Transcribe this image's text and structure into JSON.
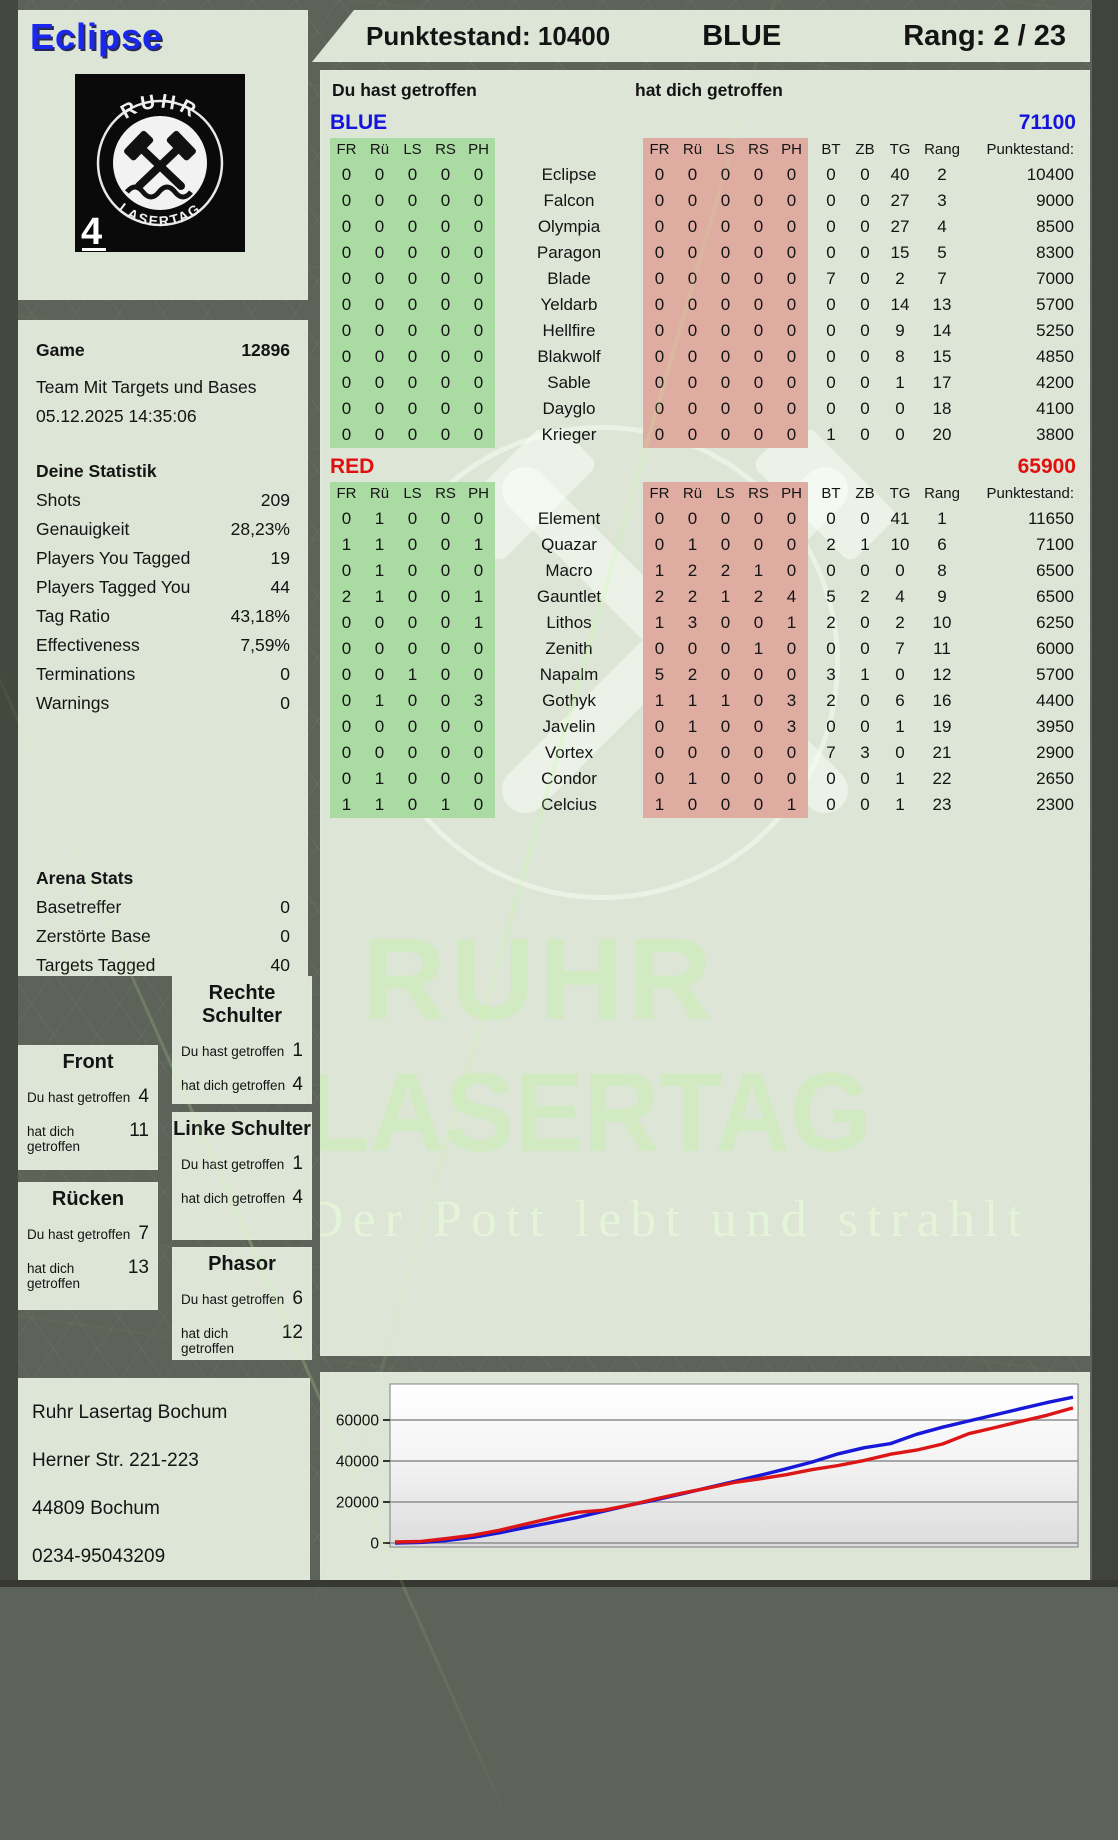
{
  "player": {
    "name": "Eclipse",
    "badge_number": "4"
  },
  "logo": {
    "arc_top": "RUHR",
    "arc_bottom": "LASERTAG",
    "icon": "crossed-hammers"
  },
  "header": {
    "punktestand": "Punktestand: 10400",
    "team": "BLUE",
    "rang": "Rang: 2 / 23"
  },
  "game": {
    "label": "Game",
    "id": "12896",
    "mode": "Team Mit Targets und Bases",
    "datetime": "05.12.2025 14:35:06"
  },
  "stats": {
    "title": "Deine Statistik",
    "rows": [
      {
        "label": "Shots",
        "value": "209"
      },
      {
        "label": "Genauigkeit",
        "value": "28,23%"
      },
      {
        "label": "Players You Tagged",
        "value": "19"
      },
      {
        "label": "Players Tagged You",
        "value": "44"
      },
      {
        "label": "Tag Ratio",
        "value": "43,18%"
      },
      {
        "label": "Effectiveness",
        "value": "7,59%"
      },
      {
        "label": "Terminations",
        "value": "0"
      },
      {
        "label": "Warnings",
        "value": "0"
      }
    ]
  },
  "arena": {
    "title": "Arena Stats",
    "rows": [
      {
        "label": "Basetreffer",
        "value": "0"
      },
      {
        "label": "Zerstörte Base",
        "value": "0"
      },
      {
        "label": "Targets Tagged",
        "value": "40"
      }
    ]
  },
  "hitzone_labels": {
    "you": "Du hast getroffen",
    "them": "hat dich getroffen"
  },
  "hitzones": [
    {
      "cls": "hz-rechte",
      "title": "Rechte Schulter",
      "you": "1",
      "them": "4"
    },
    {
      "cls": "hz-front",
      "title": "Front",
      "you": "4",
      "them": "11"
    },
    {
      "cls": "hz-linke",
      "title": "Linke Schulter",
      "you": "1",
      "them": "4"
    },
    {
      "cls": "hz-ruecken",
      "title": "Rücken",
      "you": "7",
      "them": "13"
    },
    {
      "cls": "hz-phasor",
      "title": "Phasor",
      "you": "6",
      "them": "12"
    }
  ],
  "scoreboard": {
    "you_header": "Du hast getroffen",
    "them_header": "hat dich getroffen",
    "col_headers_hit": [
      "FR",
      "Rü",
      "LS",
      "RS",
      "PH"
    ],
    "col_headers_right": [
      "BT",
      "ZB",
      "TG",
      "Rang",
      "Punktestand:"
    ],
    "teams": [
      {
        "name": "BLUE",
        "color": "#1414dc",
        "total": "71100",
        "rows": [
          {
            "hits": [
              "0",
              "0",
              "0",
              "0",
              "0"
            ],
            "name": "Eclipse",
            "taken": [
              "0",
              "0",
              "0",
              "0",
              "0"
            ],
            "bt": "0",
            "zb": "0",
            "tg": "40",
            "rang": "2",
            "points": "10400"
          },
          {
            "hits": [
              "0",
              "0",
              "0",
              "0",
              "0"
            ],
            "name": "Falcon",
            "taken": [
              "0",
              "0",
              "0",
              "0",
              "0"
            ],
            "bt": "0",
            "zb": "0",
            "tg": "27",
            "rang": "3",
            "points": "9000"
          },
          {
            "hits": [
              "0",
              "0",
              "0",
              "0",
              "0"
            ],
            "name": "Olympia",
            "taken": [
              "0",
              "0",
              "0",
              "0",
              "0"
            ],
            "bt": "0",
            "zb": "0",
            "tg": "27",
            "rang": "4",
            "points": "8500"
          },
          {
            "hits": [
              "0",
              "0",
              "0",
              "0",
              "0"
            ],
            "name": "Paragon",
            "taken": [
              "0",
              "0",
              "0",
              "0",
              "0"
            ],
            "bt": "0",
            "zb": "0",
            "tg": "15",
            "rang": "5",
            "points": "8300"
          },
          {
            "hits": [
              "0",
              "0",
              "0",
              "0",
              "0"
            ],
            "name": "Blade",
            "taken": [
              "0",
              "0",
              "0",
              "0",
              "0"
            ],
            "bt": "7",
            "zb": "0",
            "tg": "2",
            "rang": "7",
            "points": "7000"
          },
          {
            "hits": [
              "0",
              "0",
              "0",
              "0",
              "0"
            ],
            "name": "Yeldarb",
            "taken": [
              "0",
              "0",
              "0",
              "0",
              "0"
            ],
            "bt": "0",
            "zb": "0",
            "tg": "14",
            "rang": "13",
            "points": "5700"
          },
          {
            "hits": [
              "0",
              "0",
              "0",
              "0",
              "0"
            ],
            "name": "Hellfire",
            "taken": [
              "0",
              "0",
              "0",
              "0",
              "0"
            ],
            "bt": "0",
            "zb": "0",
            "tg": "9",
            "rang": "14",
            "points": "5250"
          },
          {
            "hits": [
              "0",
              "0",
              "0",
              "0",
              "0"
            ],
            "name": "Blakwolf",
            "taken": [
              "0",
              "0",
              "0",
              "0",
              "0"
            ],
            "bt": "0",
            "zb": "0",
            "tg": "8",
            "rang": "15",
            "points": "4850"
          },
          {
            "hits": [
              "0",
              "0",
              "0",
              "0",
              "0"
            ],
            "name": "Sable",
            "taken": [
              "0",
              "0",
              "0",
              "0",
              "0"
            ],
            "bt": "0",
            "zb": "0",
            "tg": "1",
            "rang": "17",
            "points": "4200"
          },
          {
            "hits": [
              "0",
              "0",
              "0",
              "0",
              "0"
            ],
            "name": "Dayglo",
            "taken": [
              "0",
              "0",
              "0",
              "0",
              "0"
            ],
            "bt": "0",
            "zb": "0",
            "tg": "0",
            "rang": "18",
            "points": "4100"
          },
          {
            "hits": [
              "0",
              "0",
              "0",
              "0",
              "0"
            ],
            "name": "Krieger",
            "taken": [
              "0",
              "0",
              "0",
              "0",
              "0"
            ],
            "bt": "1",
            "zb": "0",
            "tg": "0",
            "rang": "20",
            "points": "3800"
          }
        ]
      },
      {
        "name": "RED",
        "color": "#e01010",
        "total": "65900",
        "rows": [
          {
            "hits": [
              "0",
              "1",
              "0",
              "0",
              "0"
            ],
            "name": "Element",
            "taken": [
              "0",
              "0",
              "0",
              "0",
              "0"
            ],
            "bt": "0",
            "zb": "0",
            "tg": "41",
            "rang": "1",
            "points": "11650"
          },
          {
            "hits": [
              "1",
              "1",
              "0",
              "0",
              "1"
            ],
            "name": "Quazar",
            "taken": [
              "0",
              "1",
              "0",
              "0",
              "0"
            ],
            "bt": "2",
            "zb": "1",
            "tg": "10",
            "rang": "6",
            "points": "7100"
          },
          {
            "hits": [
              "0",
              "1",
              "0",
              "0",
              "0"
            ],
            "name": "Macro",
            "taken": [
              "1",
              "2",
              "2",
              "1",
              "0"
            ],
            "bt": "0",
            "zb": "0",
            "tg": "0",
            "rang": "8",
            "points": "6500"
          },
          {
            "hits": [
              "2",
              "1",
              "0",
              "0",
              "1"
            ],
            "name": "Gauntlet",
            "taken": [
              "2",
              "2",
              "1",
              "2",
              "4"
            ],
            "bt": "5",
            "zb": "2",
            "tg": "4",
            "rang": "9",
            "points": "6500"
          },
          {
            "hits": [
              "0",
              "0",
              "0",
              "0",
              "1"
            ],
            "name": "Lithos",
            "taken": [
              "1",
              "3",
              "0",
              "0",
              "1"
            ],
            "bt": "2",
            "zb": "0",
            "tg": "2",
            "rang": "10",
            "points": "6250"
          },
          {
            "hits": [
              "0",
              "0",
              "0",
              "0",
              "0"
            ],
            "name": "Zenith",
            "taken": [
              "0",
              "0",
              "0",
              "1",
              "0"
            ],
            "bt": "0",
            "zb": "0",
            "tg": "7",
            "rang": "11",
            "points": "6000"
          },
          {
            "hits": [
              "0",
              "0",
              "1",
              "0",
              "0"
            ],
            "name": "Napalm",
            "taken": [
              "5",
              "2",
              "0",
              "0",
              "0"
            ],
            "bt": "3",
            "zb": "1",
            "tg": "0",
            "rang": "12",
            "points": "5700"
          },
          {
            "hits": [
              "0",
              "1",
              "0",
              "0",
              "3"
            ],
            "name": "Gothyk",
            "taken": [
              "1",
              "1",
              "1",
              "0",
              "3"
            ],
            "bt": "2",
            "zb": "0",
            "tg": "6",
            "rang": "16",
            "points": "4400"
          },
          {
            "hits": [
              "0",
              "0",
              "0",
              "0",
              "0"
            ],
            "name": "Javelin",
            "taken": [
              "0",
              "1",
              "0",
              "0",
              "3"
            ],
            "bt": "0",
            "zb": "0",
            "tg": "1",
            "rang": "19",
            "points": "3950"
          },
          {
            "hits": [
              "0",
              "0",
              "0",
              "0",
              "0"
            ],
            "name": "Vortex",
            "taken": [
              "0",
              "0",
              "0",
              "0",
              "0"
            ],
            "bt": "7",
            "zb": "3",
            "tg": "0",
            "rang": "21",
            "points": "2900"
          },
          {
            "hits": [
              "0",
              "1",
              "0",
              "0",
              "0"
            ],
            "name": "Condor",
            "taken": [
              "0",
              "1",
              "0",
              "0",
              "0"
            ],
            "bt": "0",
            "zb": "0",
            "tg": "1",
            "rang": "22",
            "points": "2650"
          },
          {
            "hits": [
              "1",
              "1",
              "0",
              "1",
              "0"
            ],
            "name": "Celcius",
            "taken": [
              "1",
              "0",
              "0",
              "0",
              "1"
            ],
            "bt": "0",
            "zb": "0",
            "tg": "1",
            "rang": "23",
            "points": "2300"
          }
        ]
      }
    ]
  },
  "watermark": {
    "line1": "RUHR",
    "line2": "LASERTAG",
    "tagline": "Der Pott lebt und strahlt"
  },
  "address": {
    "lines": [
      "Ruhr Lasertag Bochum",
      "Herner Str. 221-223",
      "44809 Bochum",
      "0234-95043209"
    ]
  },
  "chart_data": {
    "type": "line",
    "title": "",
    "xlabel": "",
    "ylabel": "",
    "ylim": [
      0,
      74000
    ],
    "yticks": [
      0,
      20000,
      40000,
      60000
    ],
    "grid": true,
    "legend_position": "none",
    "series": [
      {
        "name": "BLUE",
        "color": "#1818d8",
        "values": [
          0,
          300,
          1200,
          2800,
          5000,
          7500,
          10000,
          12500,
          15500,
          18500,
          21000,
          24000,
          27000,
          30000,
          33000,
          36200,
          39500,
          43500,
          46500,
          48500,
          53000,
          56500,
          59500,
          62500,
          65500,
          68500,
          71100
        ]
      },
      {
        "name": "RED",
        "color": "#dc1616",
        "values": [
          500,
          800,
          2200,
          3800,
          6200,
          9200,
          12200,
          15000,
          16000,
          18500,
          21500,
          24300,
          26800,
          29500,
          31300,
          33300,
          35800,
          37800,
          40300,
          43300,
          45300,
          48300,
          53300,
          56300,
          59300,
          62300,
          65900
        ]
      }
    ]
  }
}
